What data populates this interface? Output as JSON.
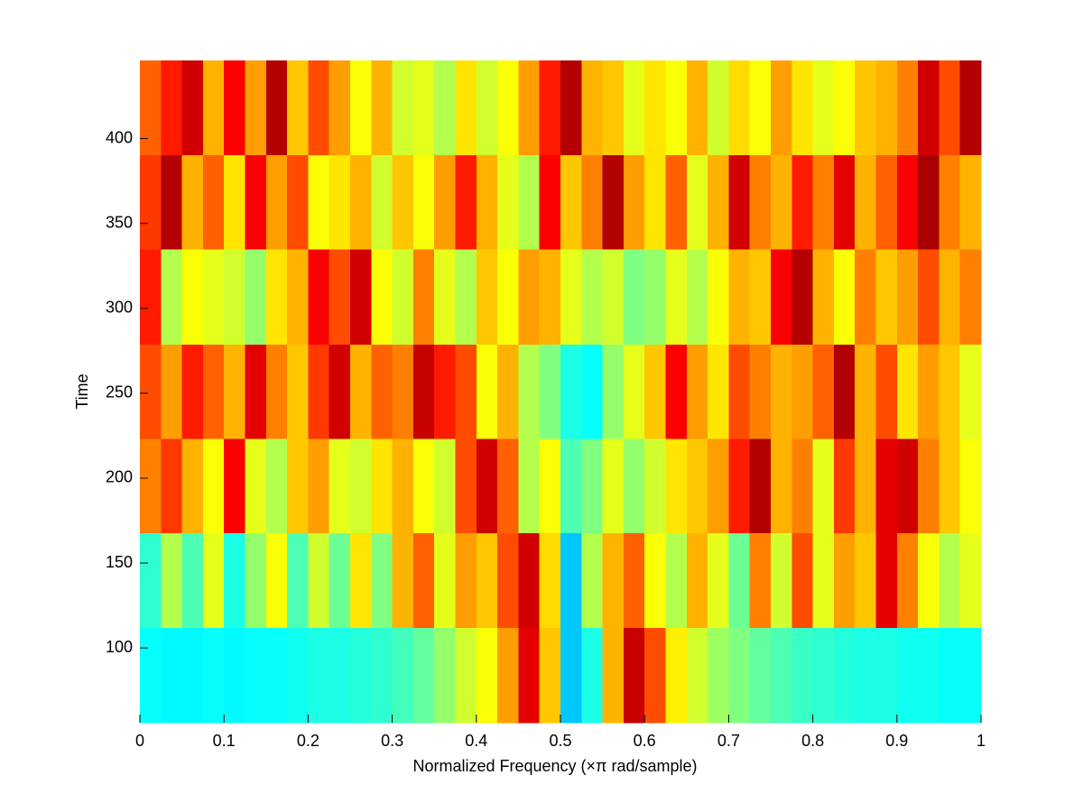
{
  "chart_data": {
    "type": "heatmap",
    "colormap": "jet",
    "clim": [
      0,
      1
    ],
    "xlabel": "Normalized Frequency  (×π rad/sample)",
    "ylabel": "Time",
    "xlim": [
      0,
      1
    ],
    "xticks": [
      0,
      0.1,
      0.2,
      0.3,
      0.4,
      0.5,
      0.6,
      0.7,
      0.8,
      0.9,
      1
    ],
    "ylim": [
      56,
      446
    ],
    "yticks": [
      100,
      150,
      200,
      250,
      300,
      350,
      400
    ],
    "y": [
      84,
      140,
      196,
      251,
      307,
      363,
      418
    ],
    "z": [
      [
        0.38,
        0.37,
        0.37,
        0.38,
        0.37,
        0.38,
        0.38,
        0.39,
        0.4,
        0.4,
        0.41,
        0.42,
        0.44,
        0.47,
        0.52,
        0.58,
        0.62,
        0.72,
        0.9,
        0.68,
        0.32,
        0.4,
        0.7,
        0.93,
        0.8,
        0.64,
        0.58,
        0.53,
        0.5,
        0.47,
        0.45,
        0.43,
        0.42,
        0.41,
        0.4,
        0.4,
        0.39,
        0.39,
        0.38,
        0.38
      ],
      [
        0.42,
        0.55,
        0.45,
        0.6,
        0.4,
        0.52,
        0.62,
        0.45,
        0.58,
        0.48,
        0.65,
        0.5,
        0.7,
        0.78,
        0.6,
        0.72,
        0.68,
        0.8,
        0.92,
        0.66,
        0.32,
        0.55,
        0.7,
        0.78,
        0.62,
        0.55,
        0.7,
        0.6,
        0.48,
        0.75,
        0.58,
        0.8,
        0.6,
        0.72,
        0.68,
        0.9,
        0.75,
        0.62,
        0.55,
        0.6
      ],
      [
        0.75,
        0.82,
        0.7,
        0.62,
        0.88,
        0.6,
        0.55,
        0.68,
        0.72,
        0.6,
        0.58,
        0.65,
        0.7,
        0.62,
        0.58,
        0.8,
        0.92,
        0.78,
        0.55,
        0.62,
        0.45,
        0.5,
        0.6,
        0.52,
        0.58,
        0.65,
        0.68,
        0.72,
        0.85,
        0.95,
        0.7,
        0.75,
        0.6,
        0.82,
        0.7,
        0.9,
        0.92,
        0.75,
        0.68,
        0.62
      ],
      [
        0.8,
        0.72,
        0.85,
        0.78,
        0.7,
        0.9,
        0.75,
        0.68,
        0.82,
        0.92,
        0.7,
        0.78,
        0.75,
        0.93,
        0.85,
        0.8,
        0.62,
        0.7,
        0.55,
        0.5,
        0.4,
        0.38,
        0.52,
        0.6,
        0.68,
        0.88,
        0.72,
        0.65,
        0.8,
        0.75,
        0.7,
        0.72,
        0.78,
        0.95,
        0.7,
        0.8,
        0.65,
        0.72,
        0.68,
        0.6
      ],
      [
        0.85,
        0.55,
        0.62,
        0.6,
        0.58,
        0.52,
        0.65,
        0.7,
        0.88,
        0.8,
        0.92,
        0.62,
        0.58,
        0.75,
        0.6,
        0.55,
        0.68,
        0.62,
        0.72,
        0.7,
        0.6,
        0.55,
        0.58,
        0.5,
        0.52,
        0.6,
        0.55,
        0.62,
        0.7,
        0.68,
        0.88,
        0.95,
        0.7,
        0.62,
        0.75,
        0.68,
        0.72,
        0.8,
        0.7,
        0.75
      ],
      [
        0.82,
        0.95,
        0.7,
        0.78,
        0.65,
        0.88,
        0.72,
        0.8,
        0.62,
        0.65,
        0.7,
        0.58,
        0.68,
        0.62,
        0.72,
        0.85,
        0.7,
        0.6,
        0.55,
        0.88,
        0.68,
        0.75,
        0.95,
        0.72,
        0.65,
        0.78,
        0.6,
        0.7,
        0.92,
        0.75,
        0.7,
        0.85,
        0.75,
        0.9,
        0.7,
        0.78,
        0.88,
        0.96,
        0.75,
        0.7
      ],
      [
        0.78,
        0.85,
        0.92,
        0.7,
        0.88,
        0.72,
        0.95,
        0.68,
        0.8,
        0.72,
        0.62,
        0.7,
        0.58,
        0.6,
        0.55,
        0.65,
        0.58,
        0.62,
        0.72,
        0.85,
        0.95,
        0.7,
        0.68,
        0.6,
        0.65,
        0.62,
        0.7,
        0.58,
        0.66,
        0.62,
        0.72,
        0.65,
        0.6,
        0.62,
        0.68,
        0.7,
        0.75,
        0.92,
        0.8,
        0.95
      ]
    ]
  }
}
